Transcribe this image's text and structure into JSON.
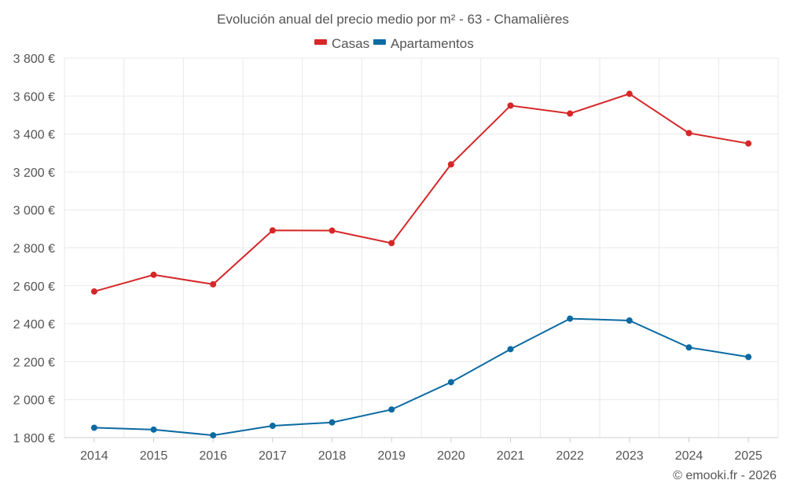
{
  "chart_data": {
    "type": "line",
    "title": "Evolución anual del precio medio por m² - 63 - Chamalières",
    "categories": [
      "2014",
      "2015",
      "2016",
      "2017",
      "2018",
      "2019",
      "2020",
      "2021",
      "2022",
      "2023",
      "2024",
      "2025"
    ],
    "series": [
      {
        "name": "Casas",
        "color": "#d62728",
        "values": [
          2570,
          2658,
          2608,
          2892,
          2891,
          2825,
          3240,
          3550,
          3508,
          3612,
          3405,
          3350
        ]
      },
      {
        "name": "Apartamentos",
        "color": "#0b6aa2",
        "values": [
          1852,
          1842,
          1812,
          1862,
          1880,
          1948,
          2092,
          2266,
          2427,
          2417,
          2275,
          2225
        ]
      }
    ],
    "ylim": [
      1800,
      3800
    ],
    "yticks": [
      1800,
      2000,
      2200,
      2400,
      2600,
      2800,
      3000,
      3200,
      3400,
      3600,
      3800
    ],
    "ytick_labels": [
      "1 800 €",
      "2 000 €",
      "2 200 €",
      "2 400 €",
      "2 600 €",
      "2 800 €",
      "3 000 €",
      "3 200 €",
      "3 400 €",
      "3 600 €",
      "3 800 €"
    ],
    "xlabel": "",
    "ylabel": "",
    "grid": true,
    "legend_position": "top-center"
  },
  "credit": "© emooki.fr - 2026"
}
